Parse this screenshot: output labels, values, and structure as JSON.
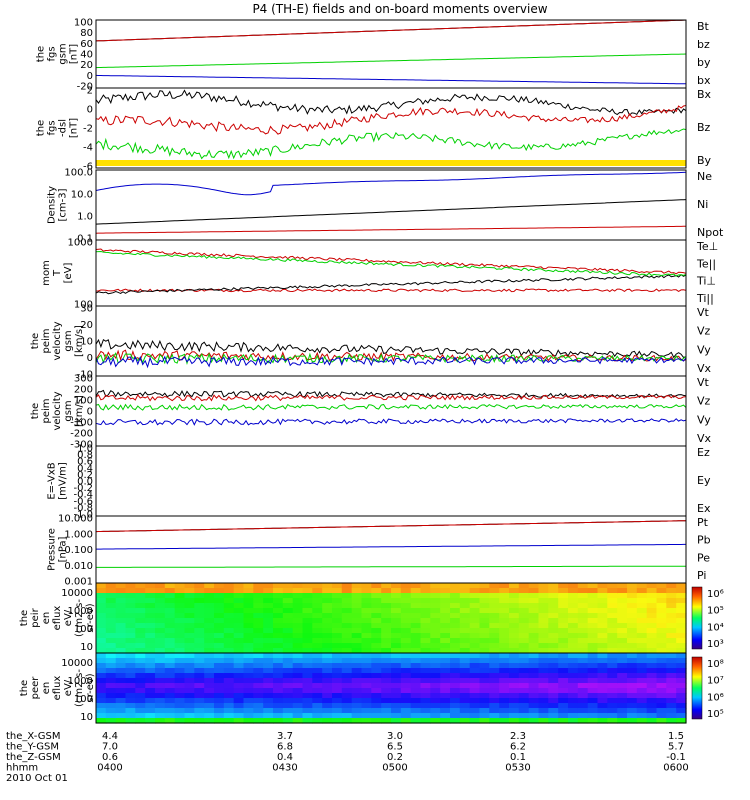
{
  "title": "P4 (TH-E) fields and on-board moments overview",
  "colors": {
    "black": "#000000",
    "red": "#cc0000",
    "green": "#00d000",
    "blue": "#0000cc",
    "yellow": "#ffe000"
  },
  "chart_data": [
    {
      "type": "line",
      "ylabel": [
        "the",
        "fgs",
        "gsm",
        "[nT]"
      ],
      "ylim": [
        -30,
        100
      ],
      "scale": "linear",
      "yticks": [
        "100",
        "80",
        "60",
        "40",
        "20",
        "0",
        "-20"
      ],
      "series": [
        {
          "name": "Bt",
          "color": "black",
          "trend": [
            60,
            100
          ]
        },
        {
          "name": "bz",
          "color": "red",
          "trend": [
            60,
            100
          ]
        },
        {
          "name": "by",
          "color": "green",
          "trend": [
            9,
            35
          ]
        },
        {
          "name": "bx",
          "color": "blue",
          "trend": [
            -6,
            -22
          ]
        }
      ]
    },
    {
      "type": "line",
      "ylabel": [
        "the",
        "fgs",
        "-dsl",
        "[nT]"
      ],
      "ylim": [
        -7,
        2
      ],
      "scale": "linear",
      "yticks": [
        "2",
        "0",
        "-2",
        "-4",
        "-6"
      ],
      "series": [
        {
          "name": "Bx",
          "color": "black",
          "trend": [
            0.5,
            0
          ]
        },
        {
          "name": "Bz",
          "color": "red",
          "trend": [
            -2.5,
            -0.5
          ]
        },
        {
          "name": "By",
          "color": "green",
          "trend": [
            -5,
            -3.5
          ]
        }
      ]
    },
    {
      "type": "line",
      "ylabel": [
        "Density",
        "[cm-3]"
      ],
      "ylim": [
        0.1,
        120
      ],
      "scale": "log",
      "yticks": [
        "100.0",
        "10.0",
        "1.0",
        "0.1"
      ],
      "series": [
        {
          "name": "Ne",
          "color": "red",
          "trend": [
            0.2,
            0.4
          ]
        },
        {
          "name": "Ni",
          "color": "black",
          "trend": [
            0.5,
            6
          ]
        },
        {
          "name": "Npot",
          "color": "blue",
          "trend": [
            15,
            100
          ]
        }
      ]
    },
    {
      "type": "line",
      "ylabel": [
        "mom",
        "T",
        "[eV]"
      ],
      "ylim": [
        60,
        6000
      ],
      "scale": "log",
      "yticks": [
        "1000",
        "100"
      ],
      "series": [
        {
          "name": "Te⊥",
          "color": "red",
          "trend": [
            180,
            180
          ]
        },
        {
          "name": "Te||",
          "color": "black",
          "trend": [
            150,
            500
          ]
        },
        {
          "name": "Ti⊥",
          "color": "red",
          "trend": [
            3000,
            600
          ]
        },
        {
          "name": "Ti||",
          "color": "green",
          "trend": [
            2500,
            500
          ]
        }
      ]
    },
    {
      "type": "line",
      "ylabel": [
        "the",
        "peim",
        "velocity",
        "gsm",
        "[km/s]"
      ],
      "ylim": [
        -10,
        30
      ],
      "scale": "linear",
      "yticks": [
        "30",
        "20",
        "10",
        "0",
        "-10"
      ],
      "series": [
        {
          "name": "Vt",
          "color": "black",
          "trend": [
            8,
            2
          ]
        },
        {
          "name": "Vz",
          "color": "red",
          "trend": [
            2,
            0
          ]
        },
        {
          "name": "Vy",
          "color": "green",
          "trend": [
            0,
            0
          ]
        },
        {
          "name": "Vx",
          "color": "blue",
          "trend": [
            -2,
            -1
          ]
        }
      ]
    },
    {
      "type": "line",
      "ylabel": [
        "the",
        "peim",
        "velocity",
        "gsm",
        "[km/s]"
      ],
      "ylim": [
        -300,
        300
      ],
      "scale": "linear",
      "yticks": [
        "300",
        "200",
        "100",
        "0",
        "-100",
        "-200",
        "-300"
      ],
      "series": [
        {
          "name": "Vt",
          "color": "black",
          "trend": [
            150,
            130
          ]
        },
        {
          "name": "Vz",
          "color": "red",
          "trend": [
            110,
            120
          ]
        },
        {
          "name": "Vy",
          "color": "green",
          "trend": [
            30,
            40
          ]
        },
        {
          "name": "Vx",
          "color": "blue",
          "trend": [
            -100,
            -80
          ]
        }
      ]
    },
    {
      "type": "line",
      "ylabel": [
        "E=-VxB",
        "[mV/m]"
      ],
      "ylim": [
        -1,
        1
      ],
      "scale": "linear",
      "yticks": [
        "1.0",
        "0.8",
        "0.6",
        "0.4",
        "0.2",
        "0.0",
        "-0.2",
        "-0.4",
        "-0.6",
        "-0.8",
        "-1.0"
      ],
      "series": [
        {
          "name": "Ez",
          "color": "red"
        },
        {
          "name": "Ey",
          "color": "green"
        },
        {
          "name": "Ex",
          "color": "blue"
        }
      ]
    },
    {
      "type": "line",
      "ylabel": [
        "Pressure",
        "[nPa]"
      ],
      "ylim": [
        0.001,
        20
      ],
      "scale": "log",
      "yticks": [
        "10.000",
        "1.000",
        "0.100",
        "0.010",
        "0.001"
      ],
      "series": [
        {
          "name": "Pt",
          "color": "black",
          "trend": [
            2,
            10
          ]
        },
        {
          "name": "Pb",
          "color": "red",
          "trend": [
            2,
            10
          ]
        },
        {
          "name": "Pe",
          "color": "green",
          "trend": [
            0.01,
            0.012
          ]
        },
        {
          "name": "Pi",
          "color": "blue",
          "trend": [
            0.15,
            0.3
          ]
        }
      ]
    },
    {
      "type": "heatmap",
      "ylabel": [
        "the",
        "peir",
        "en",
        "eflux",
        "eV/",
        "(cm2-s-",
        "sr-eV)"
      ],
      "yticks": [
        "10000",
        "1000",
        "100",
        "10"
      ],
      "colorbar_ticks": [
        "10⁶",
        "10⁵",
        "10⁴",
        "10³"
      ]
    },
    {
      "type": "heatmap",
      "ylabel": [
        "the",
        "peer",
        "en",
        "eflux",
        "eV/",
        "(cm2-s-",
        "sr-eV)"
      ],
      "yticks": [
        "10000",
        "1000",
        "100",
        "10"
      ],
      "colorbar_ticks": [
        "10⁸",
        "10⁷",
        "10⁶",
        "10⁵"
      ]
    }
  ],
  "time_axis": {
    "rows": [
      {
        "label": "the_X-GSM",
        "values": [
          "4.4",
          "3.7",
          "3.0",
          "2.3",
          "1.5"
        ]
      },
      {
        "label": "the_Y-GSM",
        "values": [
          "7.0",
          "6.8",
          "6.5",
          "6.2",
          "5.7"
        ]
      },
      {
        "label": "the_Z-GSM",
        "values": [
          "0.6",
          "0.4",
          "0.2",
          "0.1",
          "-0.1"
        ]
      },
      {
        "label": "hhmm",
        "values": [
          "0400",
          "0430",
          "0500",
          "0530",
          "0600"
        ]
      }
    ],
    "date": "2010 Oct 01"
  }
}
